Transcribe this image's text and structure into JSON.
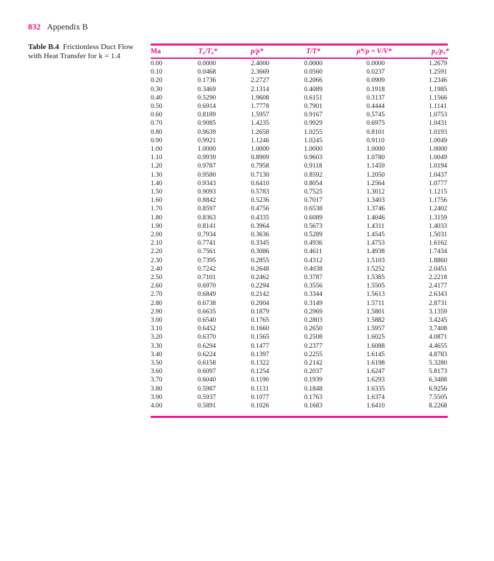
{
  "page": {
    "number": "832",
    "running_head": "Appendix B"
  },
  "caption": {
    "label": "Table B.4",
    "text": "Frictionless Duct Flow with Heat Transfer for k = 1.4"
  },
  "colors": {
    "accent": "#ec1c8c"
  },
  "table": {
    "headers": [
      "Ma",
      "T₀/T₀*",
      "p/p*",
      "T/T*",
      "ρ*/ρ = V/V*",
      "p₀/p₀*"
    ],
    "rows": [
      [
        "0.00",
        "0.0000",
        "2.4000",
        "0.0000",
        "0.0000",
        "1.2679"
      ],
      [
        "0.10",
        "0.0468",
        "2.3669",
        "0.0560",
        "0.0237",
        "1.2591"
      ],
      [
        "0.20",
        "0.1736",
        "2.2727",
        "0.2066",
        "0.0909",
        "1.2346"
      ],
      [
        "0.30",
        "0.3469",
        "2.1314",
        "0.4089",
        "0.1918",
        "1.1985"
      ],
      [
        "0.40",
        "0.5290",
        "1.9608",
        "0.6151",
        "0.3137",
        "1.1566"
      ],
      [
        "0.50",
        "0.6914",
        "1.7778",
        "0.7901",
        "0.4444",
        "1.1141"
      ],
      [
        "0.60",
        "0.8189",
        "1.5957",
        "0.9167",
        "0.5745",
        "1.0753"
      ],
      [
        "0.70",
        "0.9085",
        "1.4235",
        "0.9929",
        "0.6975",
        "1.0431"
      ],
      [
        "0.80",
        "0.9639",
        "1.2658",
        "1.0255",
        "0.8101",
        "1.0193"
      ],
      [
        "0.90",
        "0.9921",
        "1.1246",
        "1.0245",
        "0.9110",
        "1.0049"
      ],
      [
        "1.00",
        "1.0000",
        "1.0000",
        "1.0000",
        "1.0000",
        "1.0000"
      ],
      [
        "1.10",
        "0.9939",
        "0.8909",
        "0.9603",
        "1.0780",
        "1.0049"
      ],
      [
        "1.20",
        "0.9787",
        "0.7958",
        "0.9118",
        "1.1459",
        "1.0194"
      ],
      [
        "1.30",
        "0.9580",
        "0.7130",
        "0.8592",
        "1.2050",
        "1.0437"
      ],
      [
        "1.40",
        "0.9343",
        "0.6410",
        "0.8054",
        "1.2564",
        "1.0777"
      ],
      [
        "1.50",
        "0.9093",
        "0.5783",
        "0.7525",
        "1.3012",
        "1.1215"
      ],
      [
        "1.60",
        "0.8842",
        "0.5236",
        "0.7017",
        "1.3403",
        "1.1756"
      ],
      [
        "1.70",
        "0.8597",
        "0.4756",
        "0.6538",
        "1.3746",
        "1.2402"
      ],
      [
        "1.80",
        "0.8363",
        "0.4335",
        "0.6089",
        "1.4046",
        "1.3159"
      ],
      [
        "1.90",
        "0.8141",
        "0.3964",
        "0.5673",
        "1.4311",
        "1.4033"
      ],
      [
        "2.00",
        "0.7934",
        "0.3636",
        "0.5289",
        "1.4545",
        "1.5031"
      ],
      [
        "2.10",
        "0.7741",
        "0.3345",
        "0.4936",
        "1.4753",
        "1.6162"
      ],
      [
        "2.20",
        "0.7561",
        "0.3086",
        "0.4611",
        "1.4938",
        "1.7434"
      ],
      [
        "2.30",
        "0.7395",
        "0.2855",
        "0.4312",
        "1.5103",
        "1.8860"
      ],
      [
        "2.40",
        "0.7242",
        "0.2648",
        "0.4038",
        "1.5252",
        "2.0451"
      ],
      [
        "2.50",
        "0.7101",
        "0.2462",
        "0.3787",
        "1.5385",
        "2.2218"
      ],
      [
        "2.60",
        "0.6970",
        "0.2294",
        "0.3556",
        "1.5505",
        "2.4177"
      ],
      [
        "2.70",
        "0.6849",
        "0.2142",
        "0.3344",
        "1.5613",
        "2.6343"
      ],
      [
        "2.80",
        "0.6738",
        "0.2004",
        "0.3149",
        "1.5711",
        "2.8731"
      ],
      [
        "2.90",
        "0.6635",
        "0.1879",
        "0.2969",
        "1.5801",
        "3.1359"
      ],
      [
        "3.00",
        "0.6540",
        "0.1765",
        "0.2803",
        "1.5882",
        "3.4245"
      ],
      [
        "3.10",
        "0.6452",
        "0.1660",
        "0.2650",
        "1.5957",
        "3.7408"
      ],
      [
        "3.20",
        "0.6370",
        "0.1565",
        "0.2508",
        "1.6025",
        "4.0871"
      ],
      [
        "3.30",
        "0.6294",
        "0.1477",
        "0.2377",
        "1.6088",
        "4.4655"
      ],
      [
        "3.40",
        "0.6224",
        "0.1397",
        "0.2255",
        "1.6145",
        "4.8783"
      ],
      [
        "3.50",
        "0.6158",
        "0.1322",
        "0.2142",
        "1.6198",
        "5.3280"
      ],
      [
        "3.60",
        "0.6097",
        "0.1254",
        "0.2037",
        "1.6247",
        "5.8173"
      ],
      [
        "3.70",
        "0.6040",
        "0.1190",
        "0.1939",
        "1.6293",
        "6.3488"
      ],
      [
        "3.80",
        "0.5987",
        "0.1131",
        "0.1848",
        "1.6335",
        "6.9256"
      ],
      [
        "3.90",
        "0.5937",
        "0.1077",
        "0.1763",
        "1.6374",
        "7.5505"
      ],
      [
        "4.00",
        "0.5891",
        "0.1026",
        "0.1683",
        "1.6410",
        "8.2268"
      ]
    ]
  }
}
